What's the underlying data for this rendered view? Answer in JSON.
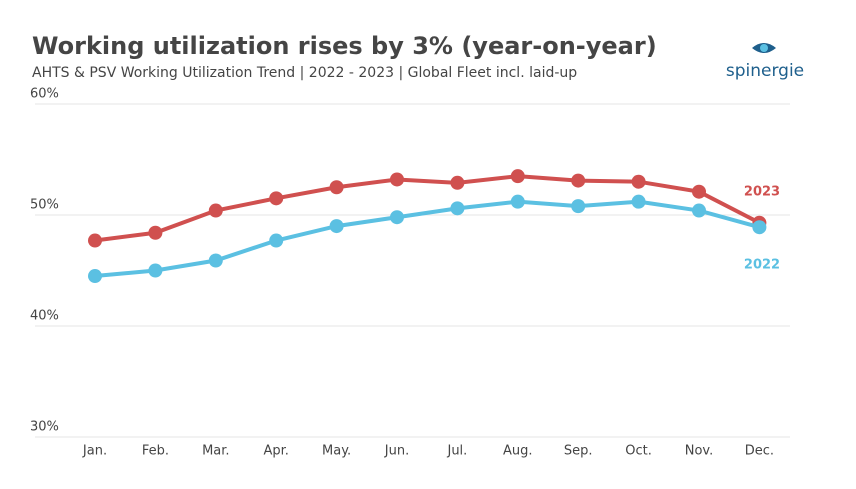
{
  "chart_data": {
    "type": "line",
    "title": "Working utilization rises by 3% (year-on-year)",
    "subtitle": "AHTS & PSV Working Utilization Trend | 2022 - 2023 | Global Fleet incl. laid-up",
    "categories": [
      "Jan.",
      "Feb.",
      "Mar.",
      "Apr.",
      "May.",
      "Jun.",
      "Jul.",
      "Aug.",
      "Sep.",
      "Oct.",
      "Nov.",
      "Dec."
    ],
    "series": [
      {
        "name": "2023",
        "color": "#d0504f",
        "values": [
          47.7,
          48.4,
          50.4,
          51.5,
          52.5,
          53.2,
          52.9,
          53.5,
          53.1,
          53.0,
          52.1,
          49.3
        ]
      },
      {
        "name": "2022",
        "color": "#5bc0e2",
        "values": [
          44.5,
          45.0,
          45.9,
          47.7,
          49.0,
          49.8,
          50.6,
          51.2,
          50.8,
          51.2,
          50.4,
          48.9
        ]
      }
    ],
    "ylim": [
      30,
      60
    ],
    "yticks": [
      {
        "value": 30,
        "label": "30%"
      },
      {
        "value": 40,
        "label": "40%"
      },
      {
        "value": 50,
        "label": "50%"
      },
      {
        "value": 60,
        "label": "60%"
      }
    ],
    "grid": true
  },
  "logo": "spinergie"
}
